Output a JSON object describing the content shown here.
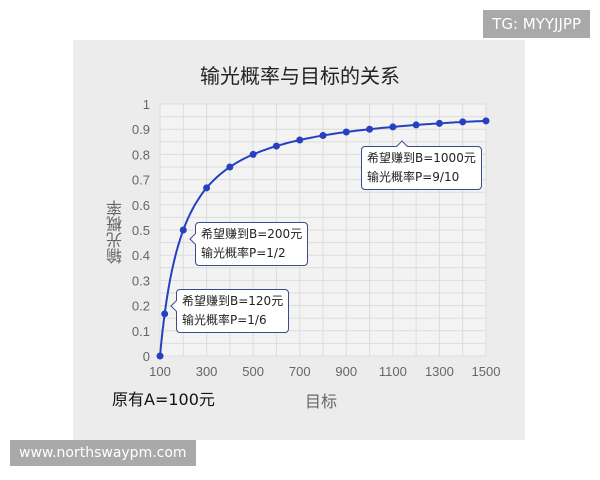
{
  "watermarks": {
    "top": "TG: MYYJJPP",
    "bottom": "www.northswaypm.com"
  },
  "chart_data": {
    "type": "line",
    "title": "输光概率与目标的关系",
    "xlabel": "目标",
    "ylabel": "输光概率",
    "footnote": "原有A=100元",
    "xlim": [
      100,
      1500
    ],
    "ylim": [
      0,
      1
    ],
    "grid": true,
    "x_ticks": [
      100,
      300,
      500,
      700,
      900,
      1100,
      1300,
      1500
    ],
    "y_ticks": [
      0,
      0.1,
      0.2,
      0.3,
      0.4,
      0.5,
      0.6,
      0.7,
      0.8,
      0.9,
      1
    ],
    "line_color": "#2540c0",
    "x": [
      100,
      120,
      200,
      300,
      400,
      500,
      600,
      700,
      800,
      900,
      1000,
      1100,
      1200,
      1300,
      1400,
      1500
    ],
    "y": [
      0,
      0.167,
      0.5,
      0.667,
      0.75,
      0.8,
      0.833,
      0.857,
      0.875,
      0.889,
      0.9,
      0.909,
      0.917,
      0.923,
      0.929,
      0.933
    ],
    "annotations": [
      {
        "line1": "希望赚到B=120元",
        "line2": "输光概率P=1/6"
      },
      {
        "line1": "希望赚到B=200元",
        "line2": "输光概率P=1/2"
      },
      {
        "line1": "希望赚到B=1000元",
        "line2": "输光概率P=9/10"
      }
    ]
  }
}
